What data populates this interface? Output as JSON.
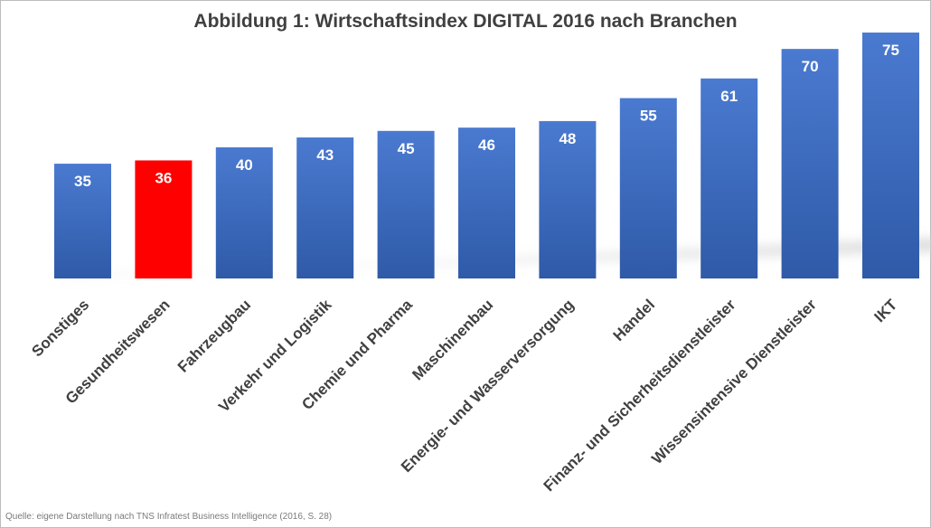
{
  "chart_data": {
    "type": "bar",
    "title": "Abbildung 1: Wirtschaftsindex DIGITAL 2016 nach Branchen",
    "categories": [
      "Sonstiges",
      "Gesundheitswesen",
      "Fahrzeugbau",
      "Verkehr und Logistik",
      "Chemie und Pharma",
      "Maschinenbau",
      "Energie- und Wasserversorgung",
      "Handel",
      "Finanz- und Sicherheitsdienstleister",
      "Wissensintensive Dienstleister",
      "IKT"
    ],
    "values": [
      35,
      36,
      40,
      43,
      45,
      46,
      48,
      55,
      61,
      70,
      75
    ],
    "ylim": [
      0,
      75
    ],
    "grid": false,
    "legend": "none",
    "colors": {
      "bar": "#4472c4",
      "highlight": "#ff0000",
      "highlight_category": "Gesundheitswesen",
      "data_label": "#ffffff",
      "axis_text": "#404040"
    },
    "source": "Quelle: eigene Darstellung nach TNS Infratest Business Intelligence (2016, S. 28)"
  }
}
